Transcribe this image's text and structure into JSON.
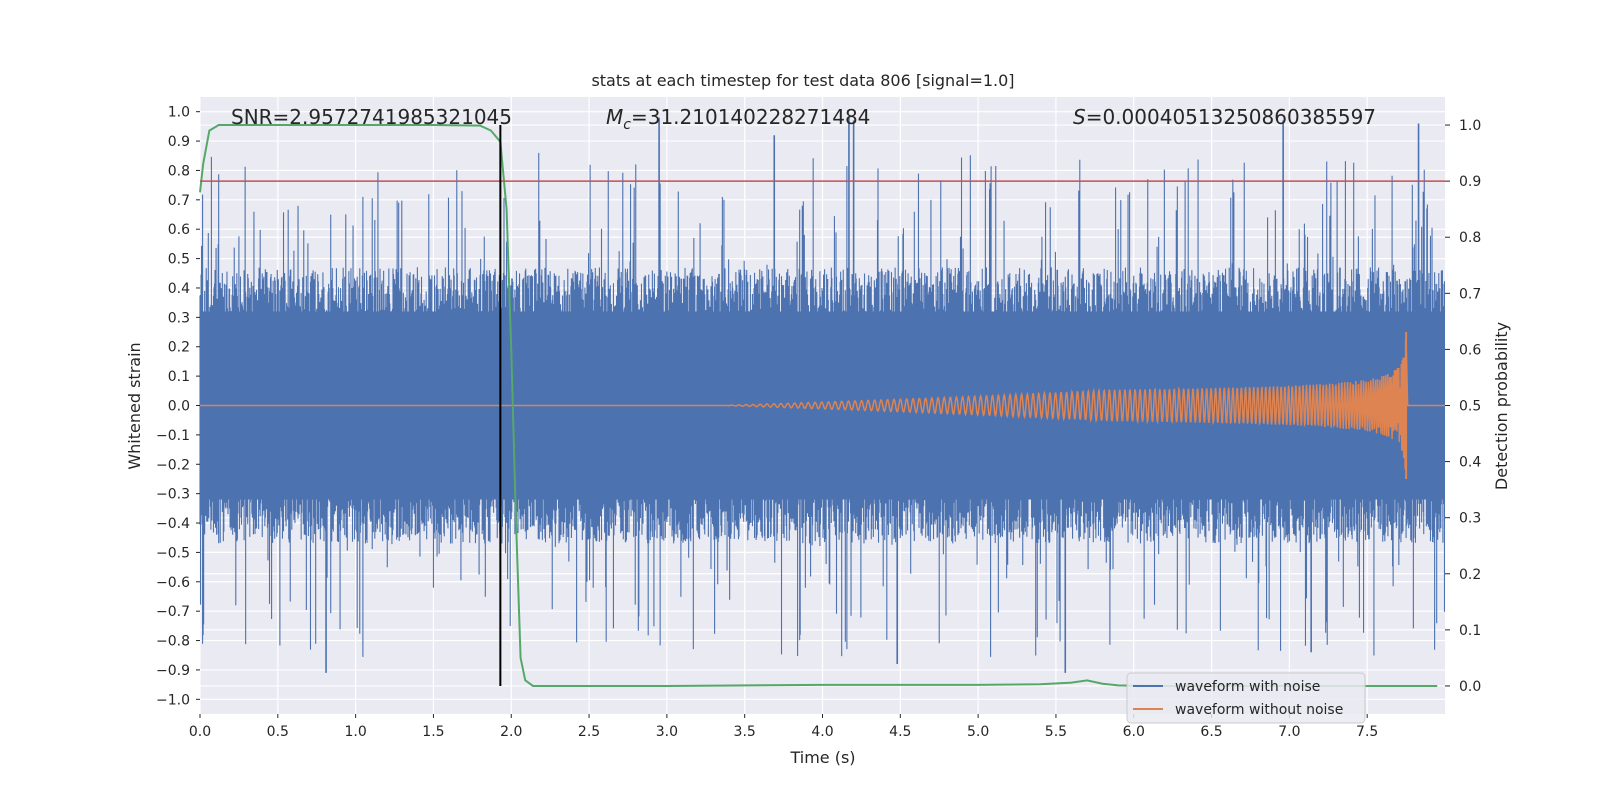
{
  "chart_data": {
    "type": "line",
    "title": "stats at each timestep for test data 806 [signal=1.0]",
    "xlabel": "Time (s)",
    "ylabel": "Whitened strain",
    "ylabel_right": "Detection probability",
    "xlim": [
      0.0,
      8.0
    ],
    "ylim": [
      -1.05,
      1.05
    ],
    "ylim_right": [
      -0.05,
      1.05
    ],
    "xticks": [
      "0.0",
      "0.5",
      "1.0",
      "1.5",
      "2.0",
      "2.5",
      "3.0",
      "3.5",
      "4.0",
      "4.5",
      "5.0",
      "5.5",
      "6.0",
      "6.5",
      "7.0",
      "7.5"
    ],
    "xtick_values": [
      0.0,
      0.5,
      1.0,
      1.5,
      2.0,
      2.5,
      3.0,
      3.5,
      4.0,
      4.5,
      5.0,
      5.5,
      6.0,
      6.5,
      7.0,
      7.5
    ],
    "yticks": [
      "1.0",
      "0.9",
      "0.8",
      "0.7",
      "0.6",
      "0.5",
      "0.4",
      "0.3",
      "0.2",
      "0.1",
      "0.0",
      "−0.1",
      "−0.2",
      "−0.3",
      "−0.4",
      "−0.5",
      "−0.6",
      "−0.7",
      "−0.8",
      "−0.9",
      "−1.0"
    ],
    "ytick_values": [
      1.0,
      0.9,
      0.8,
      0.7,
      0.6,
      0.5,
      0.4,
      0.3,
      0.2,
      0.1,
      0.0,
      -0.1,
      -0.2,
      -0.3,
      -0.4,
      -0.5,
      -0.6,
      -0.7,
      -0.8,
      -0.9,
      -1.0
    ],
    "yticks_right": [
      "1.0",
      "0.9",
      "0.8",
      "0.7",
      "0.6",
      "0.5",
      "0.4",
      "0.3",
      "0.2",
      "0.1",
      "0.0"
    ],
    "ytick_right_values": [
      1.0,
      0.9,
      0.8,
      0.7,
      0.6,
      0.5,
      0.4,
      0.3,
      0.2,
      0.1,
      0.0
    ],
    "grid": true,
    "annotations": {
      "snr": "SNR=2.9572741985321045",
      "mc_symbol": "M",
      "mc_sub": "c",
      "mc_value": "=31.210140228271484",
      "s_symbol": "S",
      "s_value": "=0.00040513250860385597"
    },
    "threshold_right": 0.9,
    "vertical_line_x": 1.93,
    "noise_envelope": {
      "seed": 806,
      "typical_peak": 0.47,
      "max_peak": 0.98,
      "min_trough": -0.91,
      "x_range": [
        0.0,
        8.0
      ]
    },
    "chirp": {
      "x_start": 3.4,
      "x_merger": 7.75,
      "x_end": 7.76,
      "peak_amplitude": 0.25,
      "trough_amplitude": -0.25
    },
    "detection_probability": {
      "x": [
        0.0,
        0.02,
        0.06,
        0.12,
        0.5,
        1.0,
        1.5,
        1.8,
        1.87,
        1.93,
        1.97,
        2.0,
        2.03,
        2.06,
        2.09,
        2.14,
        2.2,
        3.0,
        4.0,
        5.0,
        5.4,
        5.6,
        5.7,
        5.8,
        5.9,
        6.2,
        7.0,
        7.95
      ],
      "y": [
        0.88,
        0.93,
        0.99,
        1.0,
        1.0,
        1.0,
        1.0,
        0.999,
        0.99,
        0.97,
        0.85,
        0.6,
        0.3,
        0.05,
        0.01,
        0.0,
        0.0,
        0.0,
        0.002,
        0.002,
        0.003,
        0.006,
        0.01,
        0.004,
        0.001,
        0.0,
        0.0,
        0.0
      ]
    },
    "series": [
      {
        "name": "waveform with noise",
        "color": "#4c72b0"
      },
      {
        "name": "waveform without noise",
        "color": "#dd8452"
      }
    ],
    "prob_color": "#55a868",
    "threshold_color": "#c44e52",
    "vline_color": "#000000"
  }
}
